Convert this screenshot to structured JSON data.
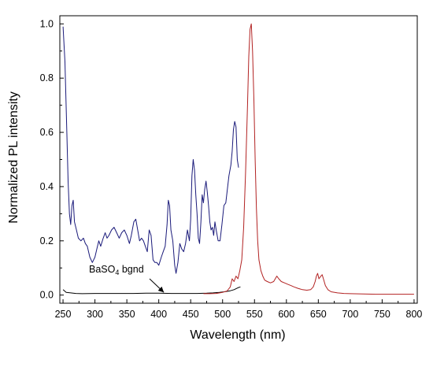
{
  "chart_data": {
    "type": "line",
    "xlabel": "Wavelength (nm)",
    "ylabel": "Normalized PL intensity",
    "xlim": [
      245,
      805
    ],
    "ylim": [
      -0.03,
      1.03
    ],
    "x_ticks": [
      250,
      300,
      350,
      400,
      450,
      500,
      550,
      600,
      650,
      700,
      750,
      800
    ],
    "y_ticks": [
      0.0,
      0.2,
      0.4,
      0.6,
      0.8,
      1.0
    ],
    "x_tick_labels": [
      "250",
      "300",
      "350",
      "400",
      "450",
      "500",
      "550",
      "600",
      "650",
      "700",
      "750",
      "800"
    ],
    "y_tick_labels": [
      "0.0",
      "0.2",
      "0.4",
      "0.6",
      "0.8",
      "1.0"
    ],
    "grid": false,
    "annotation": {
      "text_main": "BaSO",
      "text_sub": "4",
      "text_tail": " bgnd",
      "arrow_to": [
        408,
        0.01
      ]
    },
    "series": [
      {
        "color": "#1a1a7a",
        "points": [
          [
            250,
            0.99
          ],
          [
            253,
            0.86
          ],
          [
            256,
            0.6
          ],
          [
            258,
            0.42
          ],
          [
            260,
            0.3
          ],
          [
            262,
            0.26
          ],
          [
            264,
            0.33
          ],
          [
            266,
            0.35
          ],
          [
            268,
            0.27
          ],
          [
            271,
            0.24
          ],
          [
            274,
            0.21
          ],
          [
            278,
            0.2
          ],
          [
            282,
            0.21
          ],
          [
            285,
            0.19
          ],
          [
            288,
            0.18
          ],
          [
            292,
            0.14
          ],
          [
            296,
            0.12
          ],
          [
            300,
            0.14
          ],
          [
            303,
            0.17
          ],
          [
            306,
            0.2
          ],
          [
            309,
            0.18
          ],
          [
            313,
            0.21
          ],
          [
            316,
            0.23
          ],
          [
            319,
            0.21
          ],
          [
            322,
            0.22
          ],
          [
            326,
            0.24
          ],
          [
            330,
            0.25
          ],
          [
            334,
            0.23
          ],
          [
            338,
            0.21
          ],
          [
            342,
            0.23
          ],
          [
            346,
            0.24
          ],
          [
            350,
            0.22
          ],
          [
            354,
            0.19
          ],
          [
            357,
            0.22
          ],
          [
            361,
            0.27
          ],
          [
            364,
            0.28
          ],
          [
            367,
            0.24
          ],
          [
            370,
            0.2
          ],
          [
            373,
            0.21
          ],
          [
            376,
            0.2
          ],
          [
            379,
            0.18
          ],
          [
            382,
            0.16
          ],
          [
            385,
            0.24
          ],
          [
            388,
            0.22
          ],
          [
            391,
            0.13
          ],
          [
            394,
            0.12
          ],
          [
            397,
            0.12
          ],
          [
            400,
            0.11
          ],
          [
            404,
            0.14
          ],
          [
            407,
            0.16
          ],
          [
            410,
            0.18
          ],
          [
            413,
            0.26
          ],
          [
            415,
            0.35
          ],
          [
            417,
            0.33
          ],
          [
            419,
            0.24
          ],
          [
            422,
            0.2
          ],
          [
            425,
            0.11
          ],
          [
            427,
            0.08
          ],
          [
            430,
            0.12
          ],
          [
            433,
            0.19
          ],
          [
            436,
            0.17
          ],
          [
            439,
            0.16
          ],
          [
            442,
            0.19
          ],
          [
            445,
            0.24
          ],
          [
            448,
            0.2
          ],
          [
            450,
            0.28
          ],
          [
            452,
            0.44
          ],
          [
            454,
            0.5
          ],
          [
            456,
            0.46
          ],
          [
            458,
            0.37
          ],
          [
            460,
            0.3
          ],
          [
            462,
            0.21
          ],
          [
            464,
            0.19
          ],
          [
            466,
            0.27
          ],
          [
            468,
            0.37
          ],
          [
            470,
            0.34
          ],
          [
            472,
            0.39
          ],
          [
            474,
            0.42
          ],
          [
            476,
            0.38
          ],
          [
            478,
            0.33
          ],
          [
            480,
            0.27
          ],
          [
            482,
            0.24
          ],
          [
            484,
            0.25
          ],
          [
            486,
            0.22
          ],
          [
            488,
            0.27
          ],
          [
            490,
            0.24
          ],
          [
            493,
            0.2
          ],
          [
            496,
            0.2
          ],
          [
            499,
            0.26
          ],
          [
            502,
            0.33
          ],
          [
            505,
            0.34
          ],
          [
            508,
            0.4
          ],
          [
            510,
            0.44
          ],
          [
            513,
            0.48
          ],
          [
            515,
            0.53
          ],
          [
            517,
            0.61
          ],
          [
            519,
            0.64
          ],
          [
            521,
            0.62
          ],
          [
            523,
            0.5
          ],
          [
            525,
            0.47
          ]
        ]
      },
      {
        "color": "#000000",
        "points": [
          [
            250,
            0.02
          ],
          [
            255,
            0.01
          ],
          [
            262,
            0.008
          ],
          [
            270,
            0.006
          ],
          [
            280,
            0.005
          ],
          [
            300,
            0.006
          ],
          [
            320,
            0.006
          ],
          [
            340,
            0.006
          ],
          [
            360,
            0.006
          ],
          [
            380,
            0.007
          ],
          [
            400,
            0.007
          ],
          [
            420,
            0.006
          ],
          [
            440,
            0.006
          ],
          [
            460,
            0.006
          ],
          [
            475,
            0.007
          ],
          [
            485,
            0.008
          ],
          [
            495,
            0.01
          ],
          [
            505,
            0.013
          ],
          [
            512,
            0.016
          ],
          [
            518,
            0.02
          ],
          [
            524,
            0.027
          ],
          [
            528,
            0.03
          ]
        ]
      },
      {
        "color": "#b22222",
        "points": [
          [
            470,
            0.005
          ],
          [
            480,
            0.005
          ],
          [
            490,
            0.006
          ],
          [
            500,
            0.01
          ],
          [
            507,
            0.015
          ],
          [
            512,
            0.03
          ],
          [
            515,
            0.06
          ],
          [
            518,
            0.05
          ],
          [
            521,
            0.07
          ],
          [
            524,
            0.06
          ],
          [
            527,
            0.09
          ],
          [
            530,
            0.13
          ],
          [
            533,
            0.25
          ],
          [
            536,
            0.45
          ],
          [
            539,
            0.7
          ],
          [
            541,
            0.88
          ],
          [
            543,
            0.98
          ],
          [
            545,
            1.0
          ],
          [
            547,
            0.9
          ],
          [
            549,
            0.72
          ],
          [
            551,
            0.5
          ],
          [
            553,
            0.32
          ],
          [
            555,
            0.2
          ],
          [
            557,
            0.13
          ],
          [
            560,
            0.09
          ],
          [
            563,
            0.07
          ],
          [
            566,
            0.055
          ],
          [
            570,
            0.05
          ],
          [
            575,
            0.045
          ],
          [
            580,
            0.05
          ],
          [
            585,
            0.07
          ],
          [
            588,
            0.06
          ],
          [
            592,
            0.05
          ],
          [
            597,
            0.045
          ],
          [
            602,
            0.04
          ],
          [
            607,
            0.035
          ],
          [
            612,
            0.03
          ],
          [
            618,
            0.025
          ],
          [
            625,
            0.02
          ],
          [
            632,
            0.018
          ],
          [
            638,
            0.02
          ],
          [
            642,
            0.03
          ],
          [
            645,
            0.05
          ],
          [
            647,
            0.07
          ],
          [
            649,
            0.08
          ],
          [
            651,
            0.06
          ],
          [
            654,
            0.07
          ],
          [
            656,
            0.075
          ],
          [
            658,
            0.06
          ],
          [
            661,
            0.035
          ],
          [
            665,
            0.02
          ],
          [
            670,
            0.012
          ],
          [
            680,
            0.008
          ],
          [
            690,
            0.006
          ],
          [
            700,
            0.005
          ],
          [
            720,
            0.004
          ],
          [
            740,
            0.003
          ],
          [
            760,
            0.003
          ],
          [
            780,
            0.003
          ],
          [
            800,
            0.003
          ]
        ]
      }
    ]
  }
}
